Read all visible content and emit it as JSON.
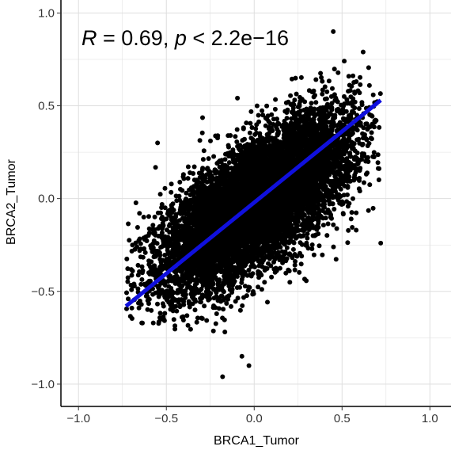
{
  "chart_data": {
    "type": "scatter",
    "xlabel": "BRCA1_Tumor",
    "ylabel": "BRCA2_Tumor",
    "xlim": [
      -1.1,
      1.12
    ],
    "ylim": [
      -1.12,
      1.07
    ],
    "xticks": [
      -1.0,
      -0.5,
      0.0,
      0.5,
      1.0
    ],
    "xtick_labels": [
      "−1.0",
      "−0.5",
      "0.0",
      "0.5",
      "1.0"
    ],
    "yticks": [
      -1.0,
      -0.5,
      0.0,
      0.5,
      1.0
    ],
    "ytick_labels": [
      "−1.0",
      "−0.5",
      "0.0",
      "0.5",
      "1.0"
    ],
    "grid": true,
    "annotation": {
      "r_symbol": "R",
      "r_text": " = 0.69, ",
      "p_symbol": "p",
      "p_text": " < 2.2e−16"
    },
    "regression_line": {
      "x": [
        -0.73,
        0.72
      ],
      "y": [
        -0.58,
        0.53
      ],
      "color": "#1010dd"
    },
    "point_cloud": {
      "n_points_rendered": 9000,
      "x_mean": 0.02,
      "x_sd": 0.27,
      "y_mean": -0.02,
      "y_sd": 0.23,
      "r": 0.69,
      "x_range": [
        -0.73,
        0.72
      ],
      "y_range": [
        -0.72,
        0.8
      ]
    },
    "outlier_points": [
      {
        "x": 0.45,
        "y": 0.9
      },
      {
        "x": -0.18,
        "y": -0.96
      },
      {
        "x": -0.03,
        "y": -0.9
      },
      {
        "x": 0.72,
        "y": -0.24
      },
      {
        "x": -0.55,
        "y": 0.3
      },
      {
        "x": 0.62,
        "y": 0.79
      },
      {
        "x": -0.64,
        "y": -0.67
      },
      {
        "x": -0.07,
        "y": -0.85
      }
    ],
    "colors": {
      "points": "#000000",
      "grid": "#dedede",
      "axis": "#000000"
    }
  }
}
